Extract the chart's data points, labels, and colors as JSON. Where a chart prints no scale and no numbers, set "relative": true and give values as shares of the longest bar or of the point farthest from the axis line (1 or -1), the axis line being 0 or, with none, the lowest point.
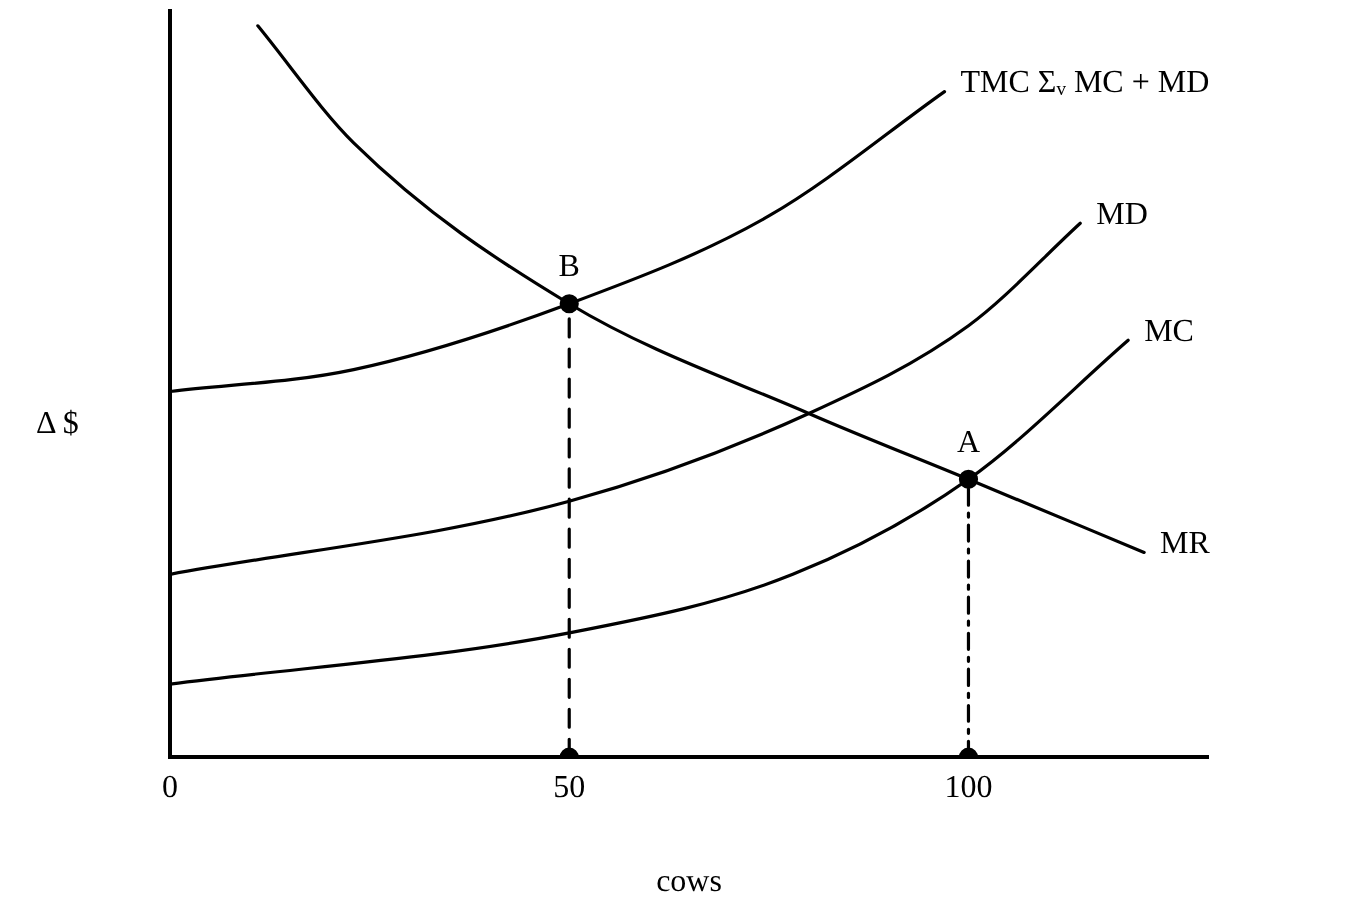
{
  "chart_data": {
    "type": "line",
    "relative": true,
    "xlabel": "cows",
    "ylabel": "Δ $",
    "xlim": [
      0,
      130
    ],
    "xticks": [
      0,
      50,
      100
    ],
    "grid": false,
    "legend": false,
    "marker": "none",
    "line_style": "solid",
    "series": [
      {
        "name": "TMC Σᵥ MC + MD",
        "color": "#000000",
        "x": [
          0,
          23,
          50,
          75,
          97
        ],
        "values": [
          0.5,
          0.53,
          0.62,
          0.74,
          0.91
        ]
      },
      {
        "name": "MD",
        "color": "#000000",
        "x": [
          0,
          50,
          80,
          100,
          114
        ],
        "values": [
          0.25,
          0.35,
          0.47,
          0.59,
          0.73
        ]
      },
      {
        "name": "MC",
        "color": "#000000",
        "x": [
          0,
          50,
          78,
          100,
          120
        ],
        "values": [
          0.1,
          0.17,
          0.25,
          0.38,
          0.57
        ]
      },
      {
        "name": "MR",
        "color": "#000000",
        "x": [
          11,
          23,
          50,
          80,
          100,
          122
        ],
        "values": [
          1,
          0.84,
          0.62,
          0.47,
          0.38,
          0.28
        ]
      },
      {
        "color": "#000000",
        "x": [
          50,
          50
        ],
        "values": [
          0,
          0.62
        ],
        "line_style": "dashed",
        "marker": "circle"
      },
      {
        "color": "#000000",
        "x": [
          100,
          100
        ],
        "values": [
          0,
          0.38
        ],
        "line_style": "dotted",
        "marker": "circle"
      }
    ],
    "annotations": [
      {
        "text": "B",
        "x": 50,
        "y": 0.62
      },
      {
        "text": "A",
        "x": 100,
        "y": 0.38
      }
    ]
  }
}
